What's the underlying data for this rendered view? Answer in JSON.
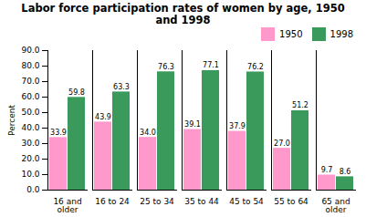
{
  "chart_data": {
    "type": "bar",
    "title": "Labor force participation rates of women by age, 1950\nand 1998",
    "categories": [
      "16 and\nolder",
      "16 to 24",
      "25 to 34",
      "35 to 44",
      "45 to 54",
      "55 to 64",
      "65 and\nolder"
    ],
    "series": [
      {
        "name": "1950",
        "color": "#FF99CC",
        "values": [
          33.9,
          43.9,
          34.0,
          39.1,
          37.9,
          27.0,
          9.7
        ],
        "value_labels": [
          "33.9",
          "43.9",
          "34.0",
          "39.1",
          "37.9",
          "27.0",
          "9.7"
        ]
      },
      {
        "name": "1998",
        "color": "#3A9A5C",
        "values": [
          59.8,
          63.3,
          76.3,
          77.1,
          76.2,
          51.2,
          8.6
        ],
        "value_labels": [
          "59.8",
          "63.3",
          "76.3",
          "77.1",
          "76.2",
          "51.2",
          "8.6"
        ]
      }
    ],
    "ylabel": "Percent",
    "ylim": [
      0,
      90
    ],
    "yticks": [
      {
        "value": 0,
        "label": "0.0"
      },
      {
        "value": 10,
        "label": "10.0"
      },
      {
        "value": 20,
        "label": "20.0"
      },
      {
        "value": 30,
        "label": "30.0"
      },
      {
        "value": 40,
        "label": "40.0"
      },
      {
        "value": 50,
        "label": "50.0"
      },
      {
        "value": 60,
        "label": "60.0"
      },
      {
        "value": 70,
        "label": "70.0"
      },
      {
        "value": 80,
        "label": "80.0"
      },
      {
        "value": 90,
        "label": "90.0"
      }
    ],
    "legend": "upper right",
    "data_labels": true,
    "grid": false
  }
}
